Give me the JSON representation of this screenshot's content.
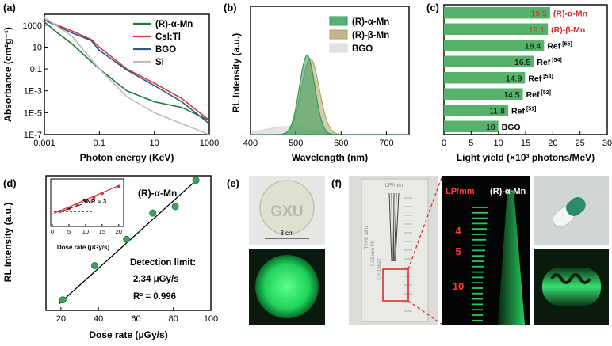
{
  "panels": {
    "a": {
      "label": "(a)",
      "ylabel": "Absorbance (cm²g⁻¹)",
      "xlabel": "Photon energy (KeV)",
      "y_ticks": [
        "1000",
        "10",
        "0.1",
        "1E-3",
        "1E-5",
        "1E-7"
      ],
      "x_ticks": [
        "0.001",
        "0.1",
        "10",
        "1000"
      ],
      "legend": [
        {
          "label": "(R)-α-Mn",
          "color": "#1c7a3c"
        },
        {
          "label": "CsI:Tl",
          "color": "#d8383c"
        },
        {
          "label": "BGO",
          "color": "#2b5a8a"
        },
        {
          "label": "Si",
          "color": "#bdbdbd"
        }
      ]
    },
    "b": {
      "label": "(b)",
      "ylabel": "RL Intensity (a.u.)",
      "xlabel": "Wavelength (nm)",
      "x_ticks": [
        "400",
        "500",
        "600",
        "700"
      ],
      "legend": [
        {
          "label": "(R)-α-Mn",
          "color": "#2e9a58"
        },
        {
          "label": "(R)-β-Mn",
          "color": "#b2a36c"
        },
        {
          "label": "BGO",
          "color": "#d9d9d9"
        }
      ]
    },
    "c": {
      "label": "(c)",
      "xlabel": "Light yield (×10³ photons/MeV)",
      "x_ticks": [
        "0",
        "5",
        "10",
        "15",
        "20",
        "25",
        "30"
      ],
      "bar_color": "#56b26a",
      "highlight_color": "#d62a2a",
      "bars": [
        {
          "value": 19.5,
          "value_label": "19.5",
          "name": "(R)-α-Mn",
          "ref": ""
        },
        {
          "value": 19.1,
          "value_label": "19.1",
          "name": "(R)-β-Mn",
          "ref": ""
        },
        {
          "value": 18.4,
          "value_label": "18.4",
          "name": "Ref",
          "ref": "[55]"
        },
        {
          "value": 16.5,
          "value_label": "16.5",
          "name": "Ref",
          "ref": "[54]"
        },
        {
          "value": 14.9,
          "value_label": "14.9",
          "name": "Ref",
          "ref": "[53]"
        },
        {
          "value": 14.5,
          "value_label": "14.5",
          "name": "Ref",
          "ref": "[52]"
        },
        {
          "value": 11.8,
          "value_label": "11.8",
          "name": "Ref",
          "ref": "[51]"
        },
        {
          "value": 10,
          "value_label": "10",
          "name": "BGO",
          "ref": ""
        }
      ]
    },
    "d": {
      "label": "(d)",
      "ylabel": "RL Intensity (a.u.)",
      "xlabel": "Dose rate (μGy/s)",
      "x_ticks": [
        "20",
        "40",
        "60",
        "80",
        "100"
      ],
      "title": "(R)-α-Mn",
      "detection_limit_label": "Detection limit:",
      "detection_limit_value": "2.34 μGy/s",
      "r2": "R² = 0.996",
      "inset_snr": "SNR = 3",
      "inset_xlabel": "Dose rate (μGy/s)",
      "inset_x_ticks": [
        "0",
        "5",
        "10",
        "15",
        "20"
      ]
    },
    "e": {
      "label": "(e)",
      "film_text": "GXU",
      "scale_text": "3 cm"
    },
    "f": {
      "label": "(f)",
      "lp_label": "LP/mm",
      "sample_label": "(R)-α-Mn",
      "line_pairs": [
        "4",
        "5",
        "10"
      ],
      "gauge_top": "LP/mm",
      "gauge_left": [
        "TYPE 38 b",
        "0.05 mm Pb",
        "CR-18822"
      ]
    }
  },
  "chart_data": [
    {
      "type": "line",
      "title": "",
      "xlabel": "Photon energy (KeV)",
      "ylabel": "Absorbance (cm²g⁻¹)",
      "x_scale": "log",
      "y_scale": "log",
      "xlim": [
        0.001,
        1000
      ],
      "ylim": [
        1e-07,
        10000
      ],
      "grid": false,
      "legend_position": "top-right",
      "series": [
        {
          "name": "(R)-α-Mn",
          "color": "#1c7a3c",
          "x": [
            0.001,
            0.003,
            0.01,
            0.1,
            1,
            10,
            100,
            1000
          ],
          "y": [
            2000,
            200,
            20,
            0.1,
            0.001,
            0.0001,
            3e-05,
            2e-06
          ]
        },
        {
          "name": "CsI:Tl",
          "color": "#d8383c",
          "x": [
            0.001,
            0.01,
            0.05,
            0.1,
            1,
            10,
            100,
            1000
          ],
          "y": [
            3000,
            300,
            50,
            10,
            0.1,
            0.005,
            0.0002,
            2e-06
          ]
        },
        {
          "name": "BGO",
          "color": "#2b5a8a",
          "x": [
            0.001,
            0.01,
            0.05,
            0.1,
            1,
            10,
            100,
            1000
          ],
          "y": [
            3000,
            200,
            40,
            5,
            0.08,
            0.003,
            0.0001,
            1e-06
          ]
        },
        {
          "name": "Si",
          "color": "#bdbdbd",
          "x": [
            0.001,
            0.01,
            0.1,
            1,
            10,
            100,
            1000
          ],
          "y": [
            5000,
            100,
            0.1,
            0.0003,
            1e-05,
            1e-06,
            1e-07
          ]
        }
      ]
    },
    {
      "type": "area",
      "title": "",
      "xlabel": "Wavelength (nm)",
      "ylabel": "RL Intensity (a.u.)",
      "xlim": [
        400,
        750
      ],
      "grid": false,
      "legend_position": "top-right",
      "series": [
        {
          "name": "(R)-α-Mn",
          "peak_nm": 525,
          "peak": 1.0,
          "width_nm": 24
        },
        {
          "name": "(R)-β-Mn",
          "peak_nm": 532,
          "peak": 0.96,
          "width_nm": 28
        },
        {
          "name": "BGO",
          "peak_nm": 480,
          "peak": 0.1,
          "width_nm": 70
        }
      ]
    },
    {
      "type": "bar",
      "title": "",
      "orientation": "horizontal",
      "xlabel": "Light yield (×10³ photons/MeV)",
      "xlim": [
        0,
        30
      ],
      "categories": [
        "(R)-α-Mn",
        "(R)-β-Mn",
        "Ref [55]",
        "Ref [54]",
        "Ref [53]",
        "Ref [52]",
        "Ref [51]",
        "BGO"
      ],
      "values": [
        19.5,
        19.1,
        18.4,
        16.5,
        14.9,
        14.5,
        11.8,
        10
      ]
    },
    {
      "type": "scatter",
      "title": "(R)-α-Mn",
      "xlabel": "Dose rate (μGy/s)",
      "ylabel": "RL Intensity (a.u.)",
      "xlim": [
        12,
        100
      ],
      "ylim": [
        0,
        1
      ],
      "fit": "linear",
      "points": [
        [
          21,
          0.08
        ],
        [
          38,
          0.34
        ],
        [
          55,
          0.54
        ],
        [
          69,
          0.74
        ],
        [
          81,
          0.79
        ],
        [
          92,
          0.99
        ]
      ]
    },
    {
      "type": "scatter",
      "title": "inset",
      "xlabel": "Dose rate (μGy/s)",
      "xlim": [
        0,
        21
      ],
      "ylim": [
        0,
        1
      ],
      "fit": "linear",
      "points": [
        [
          2.3,
          0.3
        ],
        [
          5,
          0.37
        ],
        [
          7.5,
          0.46
        ],
        [
          10,
          0.54
        ],
        [
          12.5,
          0.62
        ],
        [
          15,
          0.71
        ],
        [
          20,
          0.86
        ]
      ],
      "snr_level": 0.3
    }
  ]
}
